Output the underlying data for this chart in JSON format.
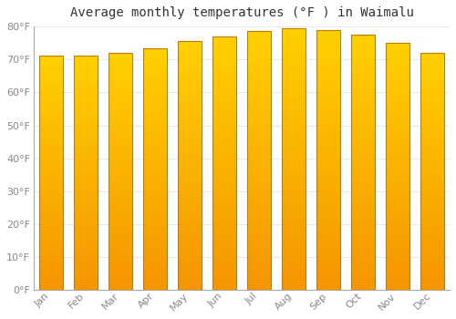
{
  "title": "Average monthly temperatures (°F ) in Waimalu",
  "months": [
    "Jan",
    "Feb",
    "Mar",
    "Apr",
    "May",
    "Jun",
    "Jul",
    "Aug",
    "Sep",
    "Oct",
    "Nov",
    "Dec"
  ],
  "values": [
    71.2,
    71.2,
    72.0,
    73.5,
    75.5,
    77.0,
    78.5,
    79.5,
    79.0,
    77.5,
    75.0,
    72.0
  ],
  "bar_color_top": "#FFD000",
  "bar_color_bottom": "#F59500",
  "bar_edge_color": "#C87800",
  "background_color": "#FFFFFF",
  "grid_color": "#DDDDDD",
  "ylim": [
    0,
    80
  ],
  "ytick_step": 10,
  "title_fontsize": 10,
  "tick_fontsize": 8,
  "tick_color": "#888888",
  "axis_color": "#AAAAAA",
  "title_color": "#333333"
}
